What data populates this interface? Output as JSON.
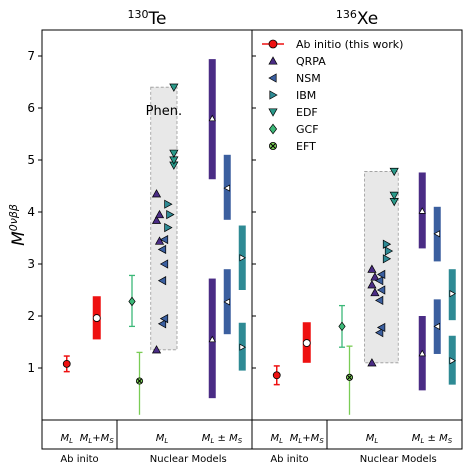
{
  "chart_data": {
    "type": "scatter",
    "ylabel": "M^{0νββ}",
    "ylim": [
      0,
      7.5
    ],
    "yticks": [
      1,
      2,
      3,
      4,
      5,
      6,
      7
    ],
    "grid": false,
    "legend_placement": "top-right",
    "legend": [
      {
        "name": "Ab initio (this work)",
        "color": "#ee1111",
        "marker": "circle"
      },
      {
        "name": "QRPA",
        "color": "#4a2c85",
        "marker": "triangle-up"
      },
      {
        "name": "NSM",
        "color": "#3b5f9f",
        "marker": "triangle-left"
      },
      {
        "name": "IBM",
        "color": "#2e8a94",
        "marker": "triangle-right"
      },
      {
        "name": "EDF",
        "color": "#2a9a8a",
        "marker": "triangle-down"
      },
      {
        "name": "GCF",
        "color": "#3cb878",
        "marker": "diamond"
      },
      {
        "name": "EFT",
        "color": "#7acc55",
        "marker": "x-circle"
      }
    ],
    "xcats": [
      {
        "label": "M_L",
        "x": 0.33
      },
      {
        "label": "M_L+M_S",
        "x": 0.73
      },
      {
        "label": "M_L",
        "x": 1.6
      },
      {
        "label": "M_L ± M_S",
        "x": 2.4
      }
    ],
    "groups": [
      {
        "label": "Ab inito",
        "x": 0.5
      },
      {
        "label": "Nuclear Models",
        "x": 1.95
      }
    ],
    "panels": [
      {
        "title_mass": "130",
        "title_elem": "Te",
        "phen_label": "Phen.",
        "phen_band": {
          "x": [
            1.45,
            1.8
          ],
          "y": [
            1.35,
            6.4
          ]
        },
        "abinitio": [
          {
            "x": 0.33,
            "y": 1.08,
            "err": [
              0.93,
              1.23
            ],
            "type": "errorbar"
          },
          {
            "x": 0.73,
            "y": 1.96,
            "range": [
              1.55,
              2.38
            ],
            "type": "bar"
          }
        ],
        "gcf": {
          "x": 1.2,
          "y": 2.28,
          "err": [
            1.8,
            2.78
          ]
        },
        "eft": {
          "x": 1.3,
          "y": 0.75,
          "err": [
            0.1,
            1.3
          ]
        },
        "qrpa_ML": [
          1.35,
          3.44,
          3.84,
          3.95,
          4.35
        ],
        "nsm_ML": [
          1.85,
          1.95,
          2.68,
          3.0,
          3.28,
          3.47
        ],
        "ibm_ML": [
          3.7,
          3.95,
          4.15
        ],
        "edf_ML": [
          4.9,
          5.0,
          5.13,
          6.4
        ],
        "qrpa_bars": [
          {
            "range": [
              4.63,
              6.94
            ],
            "y": 5.8
          },
          {
            "range": [
              0.42,
              2.72
            ],
            "y": 1.55
          }
        ],
        "nsm_bars": [
          {
            "range": [
              3.85,
              5.1
            ],
            "y": 4.46
          },
          {
            "range": [
              1.65,
              2.9
            ],
            "y": 2.27
          }
        ],
        "ibm_bars": [
          {
            "range": [
              2.5,
              3.74
            ],
            "y": 3.12
          },
          {
            "range": [
              0.95,
              1.87
            ],
            "y": 1.4
          }
        ]
      },
      {
        "title_mass": "136",
        "title_elem": "Xe",
        "phen_label": "",
        "phen_band": {
          "x": [
            1.5,
            1.95
          ],
          "y": [
            1.1,
            4.78
          ]
        },
        "abinitio": [
          {
            "x": 0.33,
            "y": 0.86,
            "err": [
              0.68,
              1.04
            ],
            "type": "errorbar"
          },
          {
            "x": 0.73,
            "y": 1.48,
            "range": [
              1.1,
              1.88
            ],
            "type": "bar"
          }
        ],
        "gcf": {
          "x": 1.2,
          "y": 1.8,
          "err": [
            1.4,
            2.2
          ]
        },
        "eft": {
          "x": 1.3,
          "y": 0.82,
          "err": [
            0.1,
            1.42
          ]
        },
        "qrpa_ML": [
          1.1,
          2.45,
          2.6,
          2.75,
          2.9
        ],
        "nsm_ML": [
          1.68,
          1.78,
          2.3,
          2.5,
          2.68,
          2.8
        ],
        "ibm_ML": [
          3.1,
          3.25,
          3.38
        ],
        "edf_ML": [
          4.2,
          4.32,
          4.78
        ],
        "qrpa_bars": [
          {
            "range": [
              3.3,
              4.76
            ],
            "y": 4.02
          },
          {
            "range": [
              0.57,
              2.0
            ],
            "y": 1.28
          }
        ],
        "nsm_bars": [
          {
            "range": [
              3.05,
              4.1
            ],
            "y": 3.58
          },
          {
            "range": [
              1.27,
              2.32
            ],
            "y": 1.8
          }
        ],
        "ibm_bars": [
          {
            "range": [
              1.92,
              2.9
            ],
            "y": 2.43
          },
          {
            "range": [
              0.68,
              1.62
            ],
            "y": 1.14
          }
        ]
      }
    ]
  }
}
